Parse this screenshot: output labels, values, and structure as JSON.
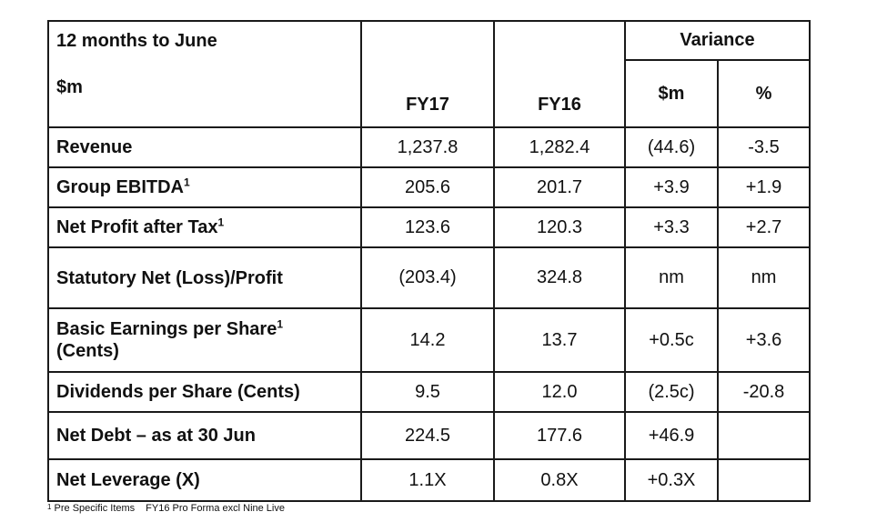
{
  "header": {
    "period": "12 months to June",
    "unit": "$m",
    "col_fy17": "FY17",
    "col_fy16": "FY16",
    "variance": "Variance",
    "var_dollar": "$m",
    "var_pct": "%"
  },
  "rows": [
    {
      "label": "Revenue",
      "sup": "",
      "fy17": "1,237.8",
      "fy16": "1,282.4",
      "var_m": "(44.6)",
      "var_pct": "-3.5"
    },
    {
      "label": "Group EBITDA",
      "sup": "1",
      "fy17": "205.6",
      "fy16": "201.7",
      "var_m": "+3.9",
      "var_pct": "+1.9"
    },
    {
      "label": "Net Profit after Tax",
      "sup": "1",
      "fy17": "123.6",
      "fy16": "120.3",
      "var_m": "+3.3",
      "var_pct": "+2.7"
    },
    {
      "label": "Statutory Net (Loss)/Profit",
      "sup": "",
      "fy17": "(203.4)",
      "fy16": "324.8",
      "var_m": "nm",
      "var_pct": "nm"
    },
    {
      "label": "Basic Earnings per Share",
      "sup": "1",
      "label2": "(Cents)",
      "fy17": "14.2",
      "fy16": "13.7",
      "var_m": "+0.5c",
      "var_pct": "+3.6"
    },
    {
      "label": "Dividends per Share (Cents)",
      "sup": "",
      "fy17": "9.5",
      "fy16": "12.0",
      "var_m": "(2.5c)",
      "var_pct": "-20.8"
    },
    {
      "label": "Net Debt – as at 30 Jun",
      "sup": "",
      "fy17": "224.5",
      "fy16": "177.6",
      "var_m": "+46.9",
      "var_pct": ""
    },
    {
      "label": "Net Leverage (X)",
      "sup": "",
      "fy17": "1.1X",
      "fy16": "0.8X",
      "var_m": "+0.3X",
      "var_pct": ""
    }
  ],
  "footnote": {
    "marker": "1",
    "note1": "Pre Specific Items",
    "note2": "FY16 Pro Forma excl Nine Live"
  }
}
